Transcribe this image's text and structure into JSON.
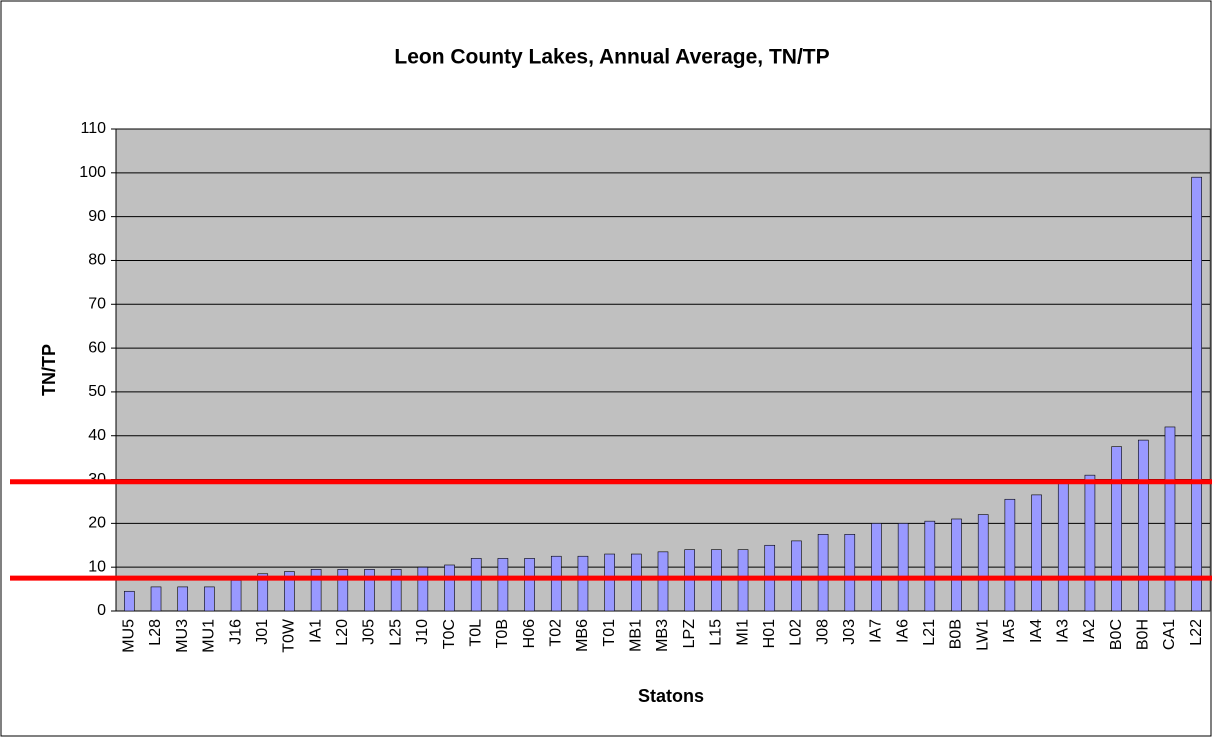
{
  "chart_data": {
    "type": "bar",
    "title": "Leon County Lakes, Annual Average, TN/TP",
    "xlabel": "Statons",
    "ylabel": "TN/TP",
    "categories": [
      "MU5",
      "L28",
      "MU3",
      "MU1",
      "J16",
      "J01",
      "T0W",
      "IA1",
      "L20",
      "J05",
      "L25",
      "J10",
      "T0C",
      "T0L",
      "T0B",
      "H06",
      "T02",
      "MB6",
      "T01",
      "MB1",
      "MB3",
      "LPZ",
      "L15",
      "MI1",
      "H01",
      "L02",
      "J08",
      "J03",
      "IA7",
      "IA6",
      "L21",
      "B0B",
      "LW1",
      "IA5",
      "IA4",
      "IA3",
      "IA2",
      "B0C",
      "B0H",
      "CA1",
      "L22"
    ],
    "values": [
      4.5,
      5.5,
      5.5,
      5.5,
      7,
      8.5,
      9,
      9.5,
      9.5,
      9.5,
      9.5,
      10,
      10.5,
      12,
      12,
      12,
      12.5,
      12.5,
      13,
      13,
      13.5,
      14,
      14,
      14,
      15,
      16,
      17.5,
      17.5,
      20,
      20,
      20.5,
      21,
      22,
      25.5,
      26.5,
      30,
      31,
      37.5,
      39,
      42,
      99
    ],
    "color": "#9999ff",
    "ylim": [
      0,
      110
    ],
    "yticks": [
      0,
      10,
      20,
      30,
      40,
      50,
      60,
      70,
      80,
      90,
      100,
      110
    ],
    "grid": true,
    "reference_lines": [
      {
        "value": 7.5,
        "color": "#ff0000"
      },
      {
        "value": 29.5,
        "color": "#ff0000"
      }
    ]
  }
}
